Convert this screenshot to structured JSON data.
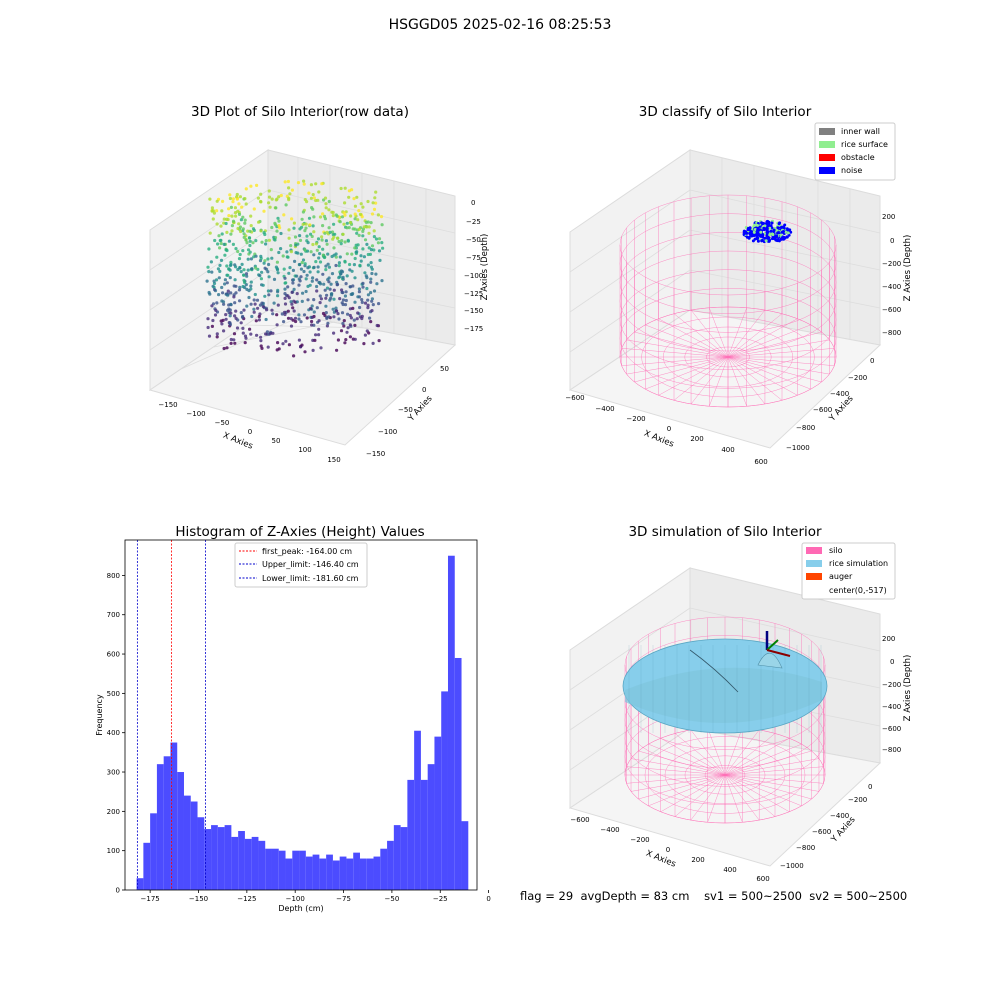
{
  "suptitle": "HSGGD05 2025-02-16 08:25:53",
  "footer": {
    "flag": "flag = 29",
    "avg_depth": "avgDepth = 83 cm",
    "sv1": "sv1 = 500~2500",
    "sv2": "sv2 = 500~2500"
  },
  "colors": {
    "inner_wall": "#808080",
    "rice_surface": "#90ee90",
    "obstacle": "#ff0000",
    "noise": "#0000ff",
    "silo": "#ff69b4",
    "rice_simulation": "#87ceeb",
    "auger": "#ff4500",
    "hist_bar": "#4c4cff",
    "first_peak_line": "#ff0000",
    "limit_line": "#0000cc"
  },
  "chart_data": [
    {
      "type": "scatter",
      "title": "3D Plot of Silo Interior(row data)",
      "projection": "3d",
      "xlabel": "X Axies",
      "ylabel": "Y Axies",
      "zlabel": "Z Axies (Depth)",
      "xticks": [
        "−150",
        "−100",
        "−50",
        "0",
        "50",
        "100",
        "150"
      ],
      "yticks": [
        "−150",
        "−100",
        "−50",
        "0",
        "50"
      ],
      "zticks": [
        "0",
        "−25",
        "−50",
        "−75",
        "−100",
        "−125",
        "−150",
        "−175"
      ],
      "colormap": "viridis"
    },
    {
      "type": "scatter",
      "title": "3D classify of Silo Interior",
      "projection": "3d",
      "xlabel": "X Axies",
      "ylabel": "Y Axies",
      "zlabel": "Z Axies (Depth)",
      "xticks": [
        "−600",
        "−400",
        "−200",
        "0",
        "200",
        "400",
        "600"
      ],
      "yticks": [
        "−1000",
        "−800",
        "−600",
        "−400",
        "−200",
        "0"
      ],
      "zticks": [
        "200",
        "0",
        "−200",
        "−400",
        "−600",
        "−800"
      ],
      "legend": [
        "inner wall",
        "rice surface",
        "obstacle",
        "noise"
      ],
      "legend_position": "top-right"
    },
    {
      "type": "bar",
      "title": "Histogram of Z-Axies (Height) Values",
      "xlabel": "Depth (cm)",
      "ylabel": "Frequency",
      "xlim": [
        -188,
        -6
      ],
      "ylim": [
        0,
        890
      ],
      "xticks": [
        -175,
        -150,
        -125,
        -100,
        -75,
        -50,
        -25,
        0
      ],
      "xtick_labels": [
        "−175",
        "−150",
        "−125",
        "−100",
        "−75",
        "−50",
        "−25",
        "0"
      ],
      "yticks": [
        0,
        100,
        200,
        300,
        400,
        500,
        600,
        700,
        800
      ],
      "bin_start": -182,
      "bin_width": 3.5,
      "values": [
        30,
        120,
        195,
        320,
        340,
        375,
        300,
        240,
        225,
        185,
        155,
        165,
        160,
        165,
        135,
        150,
        130,
        135,
        125,
        105,
        105,
        100,
        80,
        100,
        100,
        85,
        90,
        80,
        90,
        75,
        85,
        80,
        95,
        80,
        80,
        85,
        105,
        125,
        165,
        160,
        280,
        405,
        280,
        320,
        390,
        505,
        850,
        590,
        175
      ],
      "vlines": [
        {
          "x": -164.0,
          "label": "first_peak: -164.00 cm",
          "style": "first_peak"
        },
        {
          "x": -146.4,
          "label": "Upper_limit: -146.40 cm",
          "style": "limit"
        },
        {
          "x": -181.6,
          "label": "Lower_limit: -181.60 cm",
          "style": "limit"
        }
      ],
      "legend_position": "top-center"
    },
    {
      "type": "surface",
      "title": "3D simulation of Silo Interior",
      "projection": "3d",
      "xlabel": "X Axies",
      "ylabel": "Y Axies",
      "zlabel": "Z Axies (Depth)",
      "xticks": [
        "−600",
        "−400",
        "−200",
        "0",
        "200",
        "400",
        "600"
      ],
      "yticks": [
        "−1000",
        "−800",
        "−600",
        "−400",
        "−200",
        "0"
      ],
      "zticks": [
        "200",
        "0",
        "−200",
        "−400",
        "−600",
        "−800"
      ],
      "legend": [
        "silo",
        "rice simulation",
        "auger",
        "center(0,-517)"
      ],
      "legend_position": "top-right"
    }
  ]
}
